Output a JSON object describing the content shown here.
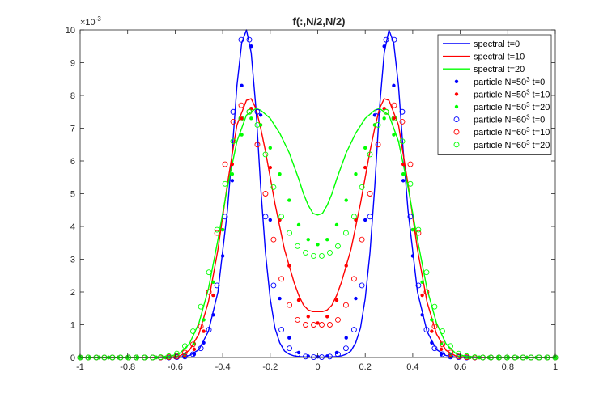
{
  "chart_data": {
    "type": "line",
    "title": "f(:,N/2,N/2)",
    "xlabel": "",
    "ylabel": "",
    "y_exponent_label": "×10",
    "y_exponent_power": "-3",
    "xlim": [
      -1,
      1
    ],
    "ylim": [
      0,
      10
    ],
    "x_ticks": [
      "-1",
      "-0.8",
      "-0.6",
      "-0.4",
      "-0.2",
      "0",
      "0.2",
      "0.4",
      "0.6",
      "0.8",
      "1"
    ],
    "y_ticks": [
      "0",
      "1",
      "2",
      "3",
      "4",
      "5",
      "6",
      "7",
      "8",
      "9",
      "10"
    ],
    "grid": false,
    "legend_position": "top-right",
    "series": [
      {
        "name": "spectral t=0",
        "name_parts": [
          "spectral t=0"
        ],
        "color": "#0000ff",
        "style": "line",
        "x": [
          -1,
          -0.92,
          -0.84,
          -0.76,
          -0.68,
          -0.62,
          -0.58,
          -0.54,
          -0.5,
          -0.46,
          -0.42,
          -0.38,
          -0.36,
          -0.34,
          -0.32,
          -0.3,
          -0.28,
          -0.26,
          -0.24,
          -0.22,
          -0.2,
          -0.18,
          -0.16,
          -0.14,
          -0.12,
          -0.1,
          -0.08,
          -0.04,
          0,
          0.04,
          0.08,
          0.1,
          0.12,
          0.14,
          0.16,
          0.18,
          0.2,
          0.22,
          0.24,
          0.26,
          0.28,
          0.3,
          0.32,
          0.34,
          0.36,
          0.38,
          0.42,
          0.46,
          0.5,
          0.54,
          0.58,
          0.62,
          0.68,
          0.76,
          0.84,
          0.92,
          1
        ],
        "y": [
          0,
          0,
          0,
          0,
          0,
          0,
          0.01,
          0.06,
          0.24,
          0.8,
          2.0,
          4.5,
          6.3,
          8.3,
          9.6,
          10.0,
          9.3,
          7.6,
          5.2,
          3.2,
          1.8,
          0.9,
          0.45,
          0.2,
          0.1,
          0.05,
          0.03,
          0.01,
          0.01,
          0.01,
          0.03,
          0.05,
          0.1,
          0.2,
          0.45,
          0.9,
          1.8,
          3.2,
          5.2,
          7.6,
          9.3,
          10.0,
          9.6,
          8.3,
          6.3,
          4.5,
          2.0,
          0.8,
          0.24,
          0.06,
          0.01,
          0,
          0,
          0,
          0,
          0,
          0
        ]
      },
      {
        "name": "spectral t=10",
        "name_parts": [
          "spectral t=10"
        ],
        "color": "#ff0000",
        "style": "line",
        "x": [
          -1,
          -0.92,
          -0.84,
          -0.76,
          -0.68,
          -0.62,
          -0.58,
          -0.54,
          -0.5,
          -0.46,
          -0.42,
          -0.38,
          -0.34,
          -0.3,
          -0.28,
          -0.26,
          -0.24,
          -0.22,
          -0.2,
          -0.18,
          -0.16,
          -0.14,
          -0.12,
          -0.1,
          -0.08,
          -0.06,
          -0.04,
          -0.02,
          0,
          0.02,
          0.04,
          0.06,
          0.08,
          0.1,
          0.12,
          0.14,
          0.16,
          0.18,
          0.2,
          0.22,
          0.24,
          0.26,
          0.28,
          0.3,
          0.34,
          0.38,
          0.42,
          0.46,
          0.5,
          0.54,
          0.58,
          0.62,
          0.68,
          0.76,
          0.84,
          0.92,
          1
        ],
        "y": [
          0,
          0,
          0,
          0,
          0,
          0.01,
          0.05,
          0.22,
          0.72,
          1.7,
          3.3,
          5.3,
          7.1,
          7.85,
          7.9,
          7.6,
          7.0,
          6.3,
          5.5,
          4.7,
          4.0,
          3.3,
          2.8,
          2.3,
          1.9,
          1.6,
          1.45,
          1.4,
          1.4,
          1.4,
          1.45,
          1.6,
          1.9,
          2.3,
          2.8,
          3.3,
          4.0,
          4.7,
          5.5,
          6.3,
          7.0,
          7.6,
          7.9,
          7.85,
          7.1,
          5.3,
          3.3,
          1.7,
          0.72,
          0.22,
          0.05,
          0.01,
          0,
          0,
          0,
          0,
          0
        ]
      },
      {
        "name": "spectral t=20",
        "name_parts": [
          "spectral t=20"
        ],
        "color": "#00ff00",
        "style": "line",
        "x": [
          -1,
          -0.92,
          -0.84,
          -0.76,
          -0.68,
          -0.62,
          -0.58,
          -0.54,
          -0.5,
          -0.46,
          -0.42,
          -0.38,
          -0.34,
          -0.3,
          -0.26,
          -0.24,
          -0.2,
          -0.16,
          -0.12,
          -0.08,
          -0.06,
          -0.04,
          -0.02,
          0,
          0.02,
          0.04,
          0.06,
          0.08,
          0.12,
          0.16,
          0.2,
          0.24,
          0.26,
          0.3,
          0.34,
          0.38,
          0.42,
          0.46,
          0.5,
          0.54,
          0.58,
          0.62,
          0.68,
          0.76,
          0.84,
          0.92,
          1
        ],
        "y": [
          0,
          0,
          0,
          0,
          0.01,
          0.04,
          0.13,
          0.42,
          1.05,
          2.1,
          3.6,
          5.2,
          6.6,
          7.4,
          7.6,
          7.55,
          7.3,
          6.85,
          6.25,
          5.45,
          5.0,
          4.65,
          4.4,
          4.35,
          4.4,
          4.65,
          5.0,
          5.45,
          6.25,
          6.85,
          7.3,
          7.55,
          7.6,
          7.4,
          6.6,
          5.2,
          3.6,
          2.1,
          1.05,
          0.42,
          0.13,
          0.04,
          0.01,
          0,
          0,
          0,
          0
        ]
      },
      {
        "name": "particle N=50^3 t=0",
        "name_parts": [
          "particle N=50",
          "3",
          " t=0"
        ],
        "color": "#0000ff",
        "style": "dot",
        "x": [
          -1,
          -0.96,
          -0.92,
          -0.88,
          -0.84,
          -0.8,
          -0.76,
          -0.72,
          -0.68,
          -0.64,
          -0.6,
          -0.56,
          -0.52,
          -0.48,
          -0.44,
          -0.4,
          -0.36,
          -0.32,
          -0.28,
          -0.24,
          -0.2,
          -0.16,
          -0.12,
          -0.08,
          -0.04,
          0,
          0.04,
          0.08,
          0.12,
          0.16,
          0.2,
          0.24,
          0.28,
          0.32,
          0.36,
          0.4,
          0.44,
          0.48,
          0.52,
          0.56,
          0.6,
          0.64,
          0.68,
          0.72,
          0.76,
          0.8,
          0.84,
          0.88,
          0.92,
          0.96,
          1
        ],
        "y": [
          0,
          0,
          0,
          0,
          0,
          0,
          0,
          0,
          0,
          0,
          0,
          0.02,
          0.1,
          0.45,
          1.3,
          3.1,
          5.4,
          8.3,
          9.5,
          7.4,
          4.2,
          1.8,
          0.6,
          0.15,
          0.04,
          0.02,
          0.04,
          0.15,
          0.6,
          1.8,
          4.2,
          7.4,
          9.5,
          8.3,
          5.4,
          3.1,
          1.3,
          0.45,
          0.1,
          0.02,
          0,
          0,
          0,
          0,
          0,
          0,
          0,
          0,
          0,
          0,
          0
        ]
      },
      {
        "name": "particle N=50^3 t=10",
        "name_parts": [
          "particle N=50",
          "3",
          " t=10"
        ],
        "color": "#ff0000",
        "style": "dot",
        "x": [
          -1,
          -0.96,
          -0.92,
          -0.88,
          -0.84,
          -0.8,
          -0.76,
          -0.72,
          -0.68,
          -0.64,
          -0.6,
          -0.56,
          -0.52,
          -0.48,
          -0.44,
          -0.4,
          -0.36,
          -0.32,
          -0.28,
          -0.24,
          -0.2,
          -0.16,
          -0.12,
          -0.08,
          -0.04,
          0,
          0.04,
          0.08,
          0.12,
          0.16,
          0.2,
          0.24,
          0.28,
          0.32,
          0.36,
          0.4,
          0.44,
          0.48,
          0.52,
          0.56,
          0.6,
          0.64,
          0.68,
          0.72,
          0.76,
          0.8,
          0.84,
          0.88,
          0.92,
          0.96,
          1
        ],
        "y": [
          0,
          0,
          0,
          0,
          0,
          0,
          0,
          0,
          0,
          0,
          0,
          0.05,
          0.25,
          0.8,
          1.9,
          3.9,
          5.9,
          7.3,
          7.6,
          7.1,
          5.8,
          4.2,
          2.8,
          1.75,
          1.25,
          1.05,
          1.25,
          1.75,
          2.8,
          4.2,
          5.8,
          7.1,
          7.6,
          7.3,
          5.9,
          3.9,
          1.9,
          0.8,
          0.25,
          0.05,
          0,
          0,
          0,
          0,
          0,
          0,
          0,
          0,
          0,
          0,
          0
        ]
      },
      {
        "name": "particle N=50^3 t=20",
        "name_parts": [
          "particle N=50",
          "3",
          " t=20"
        ],
        "color": "#00ff00",
        "style": "dot",
        "x": [
          -1,
          -0.96,
          -0.92,
          -0.88,
          -0.84,
          -0.8,
          -0.76,
          -0.72,
          -0.68,
          -0.64,
          -0.6,
          -0.56,
          -0.52,
          -0.48,
          -0.44,
          -0.4,
          -0.36,
          -0.32,
          -0.28,
          -0.24,
          -0.2,
          -0.16,
          -0.12,
          -0.08,
          -0.04,
          0,
          0.04,
          0.08,
          0.12,
          0.16,
          0.2,
          0.24,
          0.28,
          0.32,
          0.36,
          0.4,
          0.44,
          0.48,
          0.52,
          0.56,
          0.6,
          0.64,
          0.68,
          0.72,
          0.76,
          0.8,
          0.84,
          0.88,
          0.92,
          0.96,
          1
        ],
        "y": [
          0,
          0,
          0,
          0,
          0,
          0,
          0,
          0,
          0,
          0,
          0.02,
          0.1,
          0.42,
          1.15,
          2.3,
          3.9,
          5.6,
          6.8,
          7.3,
          7.1,
          6.4,
          5.6,
          4.8,
          4.05,
          3.6,
          3.45,
          3.6,
          4.05,
          4.8,
          5.6,
          6.4,
          7.1,
          7.3,
          6.8,
          5.6,
          3.9,
          2.3,
          1.15,
          0.42,
          0.1,
          0.02,
          0,
          0,
          0,
          0,
          0,
          0,
          0,
          0,
          0,
          0
        ]
      },
      {
        "name": "particle N=60^3 t=0",
        "name_parts": [
          "particle N=60",
          "3",
          " t=0"
        ],
        "color": "#0000ff",
        "style": "circle",
        "x": [
          -1,
          -0.966,
          -0.932,
          -0.898,
          -0.864,
          -0.83,
          -0.797,
          -0.763,
          -0.729,
          -0.695,
          -0.661,
          -0.627,
          -0.593,
          -0.559,
          -0.525,
          -0.492,
          -0.458,
          -0.424,
          -0.39,
          -0.356,
          -0.322,
          -0.288,
          -0.254,
          -0.22,
          -0.186,
          -0.153,
          -0.119,
          -0.085,
          -0.051,
          -0.017,
          0.017,
          0.051,
          0.085,
          0.119,
          0.153,
          0.186,
          0.22,
          0.254,
          0.288,
          0.322,
          0.356,
          0.39,
          0.424,
          0.458,
          0.492,
          0.525,
          0.559,
          0.593,
          0.627,
          0.661,
          0.695,
          0.729,
          0.763,
          0.797,
          0.83,
          0.864,
          0.898,
          0.932,
          0.966,
          1
        ],
        "y": [
          0,
          0,
          0,
          0,
          0,
          0,
          0,
          0,
          0,
          0,
          0,
          0,
          0.01,
          0.03,
          0.1,
          0.28,
          0.85,
          2.2,
          4.3,
          7.5,
          9.7,
          9.7,
          7.5,
          4.3,
          2.2,
          0.85,
          0.28,
          0.1,
          0.03,
          0.01,
          0.01,
          0.03,
          0.1,
          0.28,
          0.85,
          2.2,
          4.3,
          7.5,
          9.7,
          9.7,
          7.5,
          4.3,
          2.2,
          0.85,
          0.28,
          0.1,
          0.03,
          0.01,
          0,
          0,
          0,
          0,
          0,
          0,
          0,
          0,
          0,
          0,
          0,
          0
        ]
      },
      {
        "name": "particle N=60^3 t=10",
        "name_parts": [
          "particle N=60",
          "3",
          " t=10"
        ],
        "color": "#ff0000",
        "style": "circle",
        "x": [
          -1,
          -0.966,
          -0.932,
          -0.898,
          -0.864,
          -0.83,
          -0.797,
          -0.763,
          -0.729,
          -0.695,
          -0.661,
          -0.627,
          -0.593,
          -0.559,
          -0.525,
          -0.492,
          -0.458,
          -0.424,
          -0.39,
          -0.356,
          -0.322,
          -0.288,
          -0.254,
          -0.22,
          -0.186,
          -0.153,
          -0.119,
          -0.085,
          -0.051,
          -0.017,
          0.017,
          0.051,
          0.085,
          0.119,
          0.153,
          0.186,
          0.22,
          0.254,
          0.288,
          0.322,
          0.356,
          0.39,
          0.424,
          0.458,
          0.492,
          0.525,
          0.559,
          0.593,
          0.627,
          0.661,
          0.695,
          0.729,
          0.763,
          0.797,
          0.83,
          0.864,
          0.898,
          0.932,
          0.966,
          1
        ],
        "y": [
          0,
          0,
          0,
          0,
          0,
          0,
          0,
          0,
          0,
          0,
          0,
          0.01,
          0.03,
          0.15,
          0.4,
          0.95,
          2.0,
          3.8,
          5.9,
          7.2,
          7.7,
          7.5,
          6.5,
          5.0,
          3.6,
          2.4,
          1.6,
          1.15,
          1.0,
          1.0,
          1.0,
          1.0,
          1.15,
          1.6,
          2.4,
          3.6,
          5.0,
          6.5,
          7.5,
          7.7,
          7.2,
          5.9,
          3.8,
          2.0,
          0.95,
          0.4,
          0.15,
          0.03,
          0.01,
          0,
          0,
          0,
          0,
          0,
          0,
          0,
          0,
          0,
          0,
          0
        ]
      },
      {
        "name": "particle N=60^3 t=20",
        "name_parts": [
          "particle N=60",
          "3",
          " t=20"
        ],
        "color": "#00ff00",
        "style": "circle",
        "x": [
          -1,
          -0.966,
          -0.932,
          -0.898,
          -0.864,
          -0.83,
          -0.797,
          -0.763,
          -0.729,
          -0.695,
          -0.661,
          -0.627,
          -0.593,
          -0.559,
          -0.525,
          -0.492,
          -0.458,
          -0.424,
          -0.39,
          -0.356,
          -0.322,
          -0.288,
          -0.254,
          -0.22,
          -0.186,
          -0.153,
          -0.119,
          -0.085,
          -0.051,
          -0.017,
          0.017,
          0.051,
          0.085,
          0.119,
          0.153,
          0.186,
          0.22,
          0.254,
          0.288,
          0.322,
          0.356,
          0.39,
          0.424,
          0.458,
          0.492,
          0.525,
          0.559,
          0.593,
          0.627,
          0.661,
          0.695,
          0.729,
          0.763,
          0.797,
          0.83,
          0.864,
          0.898,
          0.932,
          0.966,
          1
        ],
        "y": [
          0,
          0,
          0,
          0,
          0,
          0,
          0,
          0,
          0,
          0,
          0.01,
          0.04,
          0.12,
          0.35,
          0.8,
          1.55,
          2.6,
          3.9,
          5.3,
          6.6,
          7.3,
          7.5,
          7.1,
          6.2,
          5.2,
          4.3,
          3.8,
          3.4,
          3.2,
          3.1,
          3.1,
          3.2,
          3.4,
          3.8,
          4.3,
          5.2,
          6.2,
          7.1,
          7.5,
          7.3,
          6.6,
          5.3,
          3.9,
          2.6,
          1.55,
          0.8,
          0.35,
          0.12,
          0.04,
          0.01,
          0,
          0,
          0,
          0,
          0,
          0,
          0,
          0,
          0,
          0
        ]
      }
    ]
  }
}
